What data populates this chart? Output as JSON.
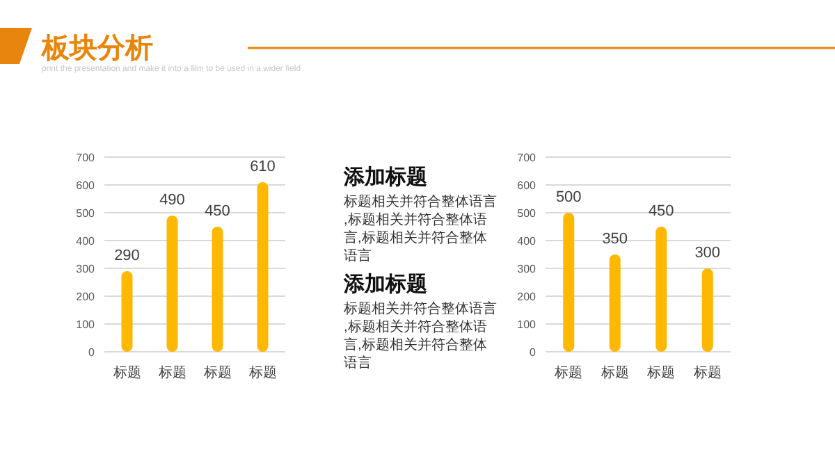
{
  "chart_data": [
    {
      "type": "other",
      "title": "板块分析",
      "subtitle": "print the presentation and make it into a film to be used in a wider field"
    },
    {
      "type": "bar",
      "categories": [
        "标题",
        "标题",
        "标题",
        "标题"
      ],
      "values": [
        290,
        490,
        450,
        610
      ],
      "color": "#ffb800",
      "ylim": [
        0,
        700
      ],
      "yticks": [
        0,
        100,
        200,
        300,
        400,
        500,
        600,
        700
      ],
      "grid": "y",
      "data_labels": true
    },
    {
      "type": "other",
      "annotations": [
        "添加标题",
        "标题相关并符合整体语言,标题相关并符合整体语言,标题相关并符合整体语言",
        "添加标题",
        "标题相关并符合整体语言,标题相关并符合整体语言,标题相关并符合整体语言"
      ]
    },
    {
      "type": "bar",
      "categories": [
        "标题",
        "标题",
        "标题",
        "标题"
      ],
      "values": [
        500,
        350,
        450,
        300
      ],
      "color": "#ffb800",
      "ylim": [
        0,
        700
      ],
      "yticks": [
        0,
        100,
        200,
        300,
        400,
        500,
        600,
        700
      ],
      "grid": "y",
      "data_labels": true
    }
  ]
}
